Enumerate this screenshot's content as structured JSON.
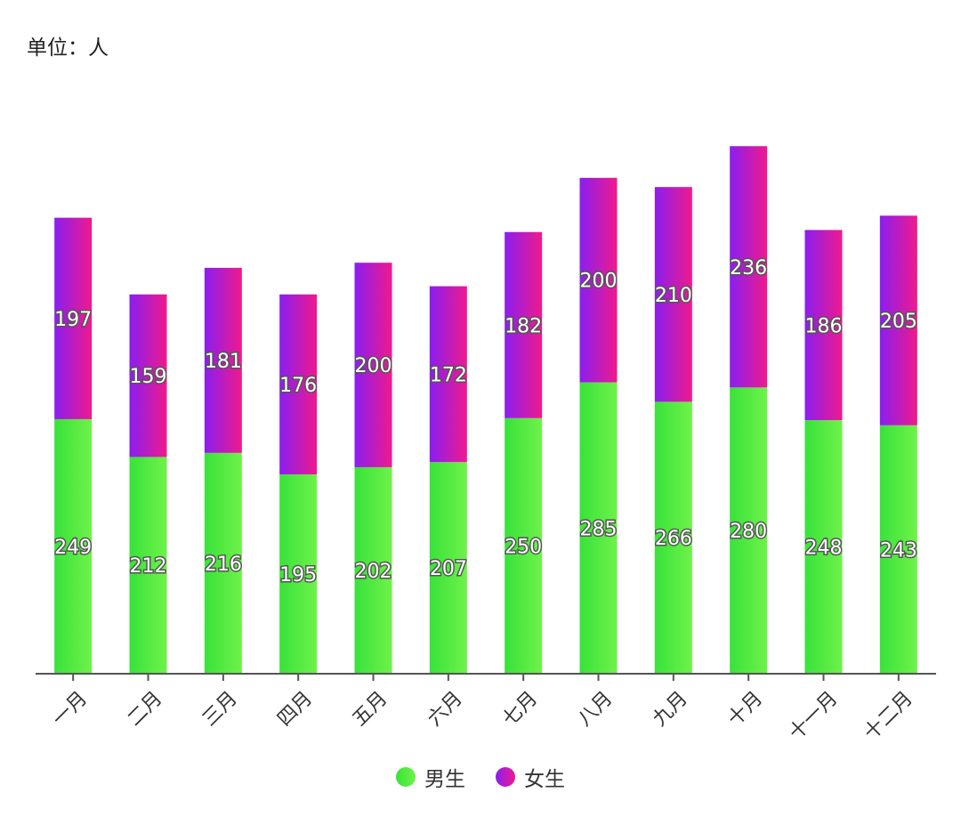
{
  "unit_label": "单位：人",
  "chart_data": {
    "type": "bar",
    "stacked": true,
    "title": "",
    "xlabel": "",
    "ylabel": "",
    "ylim": [
      0,
      560
    ],
    "grid": false,
    "legend_position": "bottom-center",
    "categories": [
      "一月",
      "二月",
      "三月",
      "四月",
      "五月",
      "六月",
      "七月",
      "八月",
      "九月",
      "十月",
      "十一月",
      "十二月"
    ],
    "series": [
      {
        "name": "男生",
        "values": [
          249,
          212,
          216,
          195,
          202,
          207,
          250,
          285,
          266,
          280,
          248,
          243
        ],
        "color_start": "#38e23a",
        "color_end": "#6ff24a"
      },
      {
        "name": "女生",
        "values": [
          197,
          159,
          181,
          176,
          200,
          172,
          182,
          200,
          210,
          236,
          186,
          205
        ],
        "color_start": "#8a1ef0",
        "color_end": "#f01a8c"
      }
    ]
  }
}
